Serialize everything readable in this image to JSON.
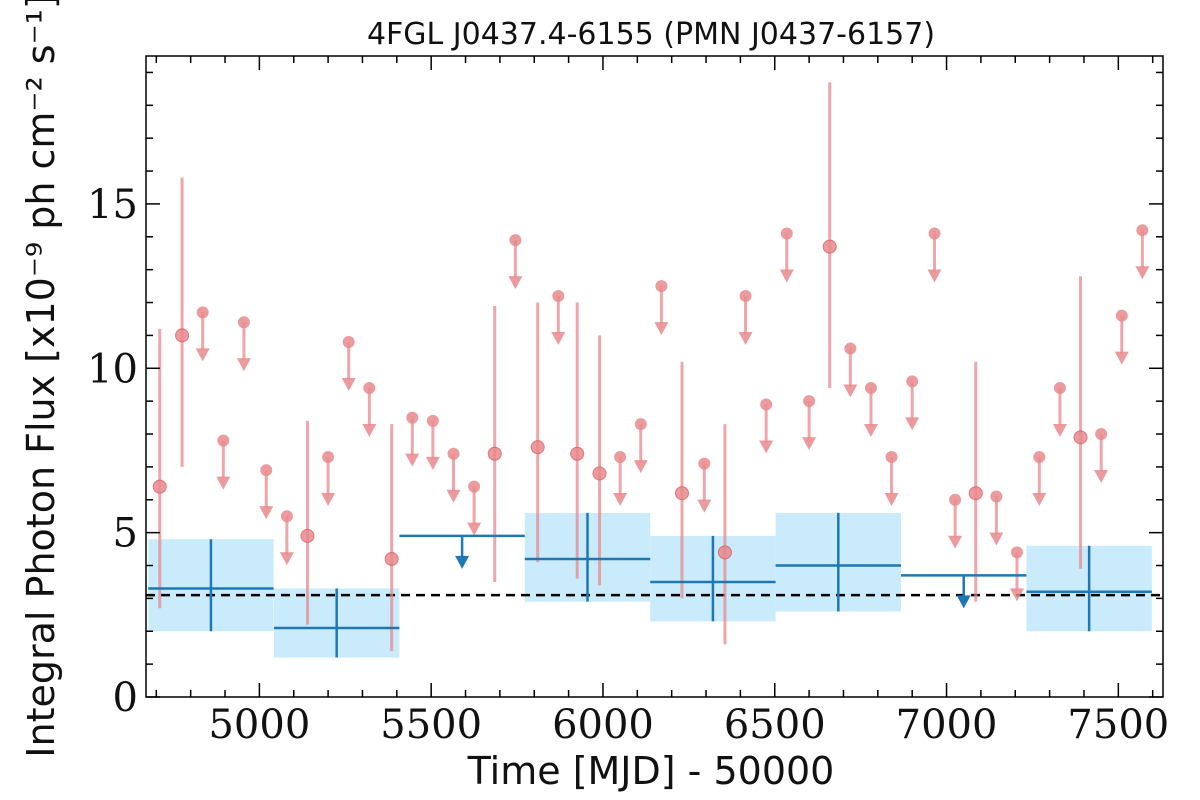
{
  "chart_data": {
    "type": "scatter",
    "title": "4FGL J0437.4-6155 (PMN J0437-6157)",
    "xlabel": "Time [MJD] - 50000",
    "ylabel": "Integral Photon Flux [x10⁻⁹ ph cm⁻² s⁻¹]",
    "xlim": [
      4670,
      7630
    ],
    "ylim": [
      0,
      19.5
    ],
    "xticks": [
      5000,
      5500,
      6000,
      6500,
      7000,
      7500
    ],
    "yticks": [
      0,
      5,
      10,
      15
    ],
    "xtick_labels": [
      "5000",
      "5500",
      "6000",
      "6500",
      "7000",
      "7500"
    ],
    "ytick_labels": [
      "0",
      "5",
      "10",
      "15"
    ],
    "reference_level": 3.1,
    "grid": false,
    "colors": {
      "fine_bins": "#e8898d",
      "coarse_bins": "#1f77b4",
      "coarse_band": "#c9ebfb",
      "reference_line": "#000000"
    },
    "series": [
      {
        "bin_width_days": 365,
        "detections": [
          {
            "x": 4859,
            "y": 3.3,
            "ylo": 2.0,
            "yhi": 4.8
          },
          {
            "x": 5225,
            "y": 2.1,
            "ylo": 1.2,
            "yhi": 3.3
          },
          {
            "x": 5955,
            "y": 4.2,
            "ylo": 2.9,
            "yhi": 5.6
          },
          {
            "x": 6320,
            "y": 3.5,
            "ylo": 2.3,
            "yhi": 4.9
          },
          {
            "x": 6685,
            "y": 4.0,
            "ylo": 2.6,
            "yhi": 5.6
          },
          {
            "x": 7415,
            "y": 3.2,
            "ylo": 2.0,
            "yhi": 4.6
          }
        ],
        "upper_limits": [
          {
            "x": 5590,
            "y": 4.9
          },
          {
            "x": 7050,
            "y": 3.7
          }
        ]
      },
      {
        "bin_width_days": 60,
        "detections": [
          {
            "x": 4710,
            "y": 6.4,
            "ylo": 2.7,
            "yhi": 11.2
          },
          {
            "x": 4775,
            "y": 11.0,
            "ylo": 7.0,
            "yhi": 15.8
          },
          {
            "x": 5140,
            "y": 4.9,
            "ylo": 2.2,
            "yhi": 8.4
          },
          {
            "x": 5385,
            "y": 4.2,
            "ylo": 1.4,
            "yhi": 8.3
          },
          {
            "x": 5685,
            "y": 7.4,
            "ylo": 3.5,
            "yhi": 11.9
          },
          {
            "x": 5810,
            "y": 7.6,
            "ylo": 4.1,
            "yhi": 12.0
          },
          {
            "x": 5925,
            "y": 7.4,
            "ylo": 3.6,
            "yhi": 12.0
          },
          {
            "x": 5990,
            "y": 6.8,
            "ylo": 3.4,
            "yhi": 11.0
          },
          {
            "x": 6230,
            "y": 6.2,
            "ylo": 3.0,
            "yhi": 10.2
          },
          {
            "x": 6355,
            "y": 4.4,
            "ylo": 1.6,
            "yhi": 8.3
          },
          {
            "x": 6660,
            "y": 13.7,
            "ylo": 9.4,
            "yhi": 18.7
          },
          {
            "x": 7085,
            "y": 6.2,
            "ylo": 2.9,
            "yhi": 10.2
          },
          {
            "x": 7390,
            "y": 7.9,
            "ylo": 3.9,
            "yhi": 12.8
          }
        ],
        "upper_limits": [
          {
            "x": 4835,
            "y": 11.7
          },
          {
            "x": 4895,
            "y": 7.8
          },
          {
            "x": 4955,
            "y": 11.4
          },
          {
            "x": 5020,
            "y": 6.9
          },
          {
            "x": 5080,
            "y": 5.5
          },
          {
            "x": 5200,
            "y": 7.3
          },
          {
            "x": 5260,
            "y": 10.8
          },
          {
            "x": 5320,
            "y": 9.4
          },
          {
            "x": 5445,
            "y": 8.5
          },
          {
            "x": 5505,
            "y": 8.4
          },
          {
            "x": 5565,
            "y": 7.4
          },
          {
            "x": 5625,
            "y": 6.4
          },
          {
            "x": 5745,
            "y": 13.9
          },
          {
            "x": 5870,
            "y": 12.2
          },
          {
            "x": 6050,
            "y": 7.3
          },
          {
            "x": 6110,
            "y": 8.3
          },
          {
            "x": 6170,
            "y": 12.5
          },
          {
            "x": 6295,
            "y": 7.1
          },
          {
            "x": 6415,
            "y": 12.2
          },
          {
            "x": 6475,
            "y": 8.9
          },
          {
            "x": 6535,
            "y": 14.1
          },
          {
            "x": 6600,
            "y": 9.0
          },
          {
            "x": 6720,
            "y": 10.6
          },
          {
            "x": 6780,
            "y": 9.4
          },
          {
            "x": 6840,
            "y": 7.3
          },
          {
            "x": 6900,
            "y": 9.6
          },
          {
            "x": 6965,
            "y": 14.1
          },
          {
            "x": 7025,
            "y": 6.0
          },
          {
            "x": 7145,
            "y": 6.1
          },
          {
            "x": 7205,
            "y": 4.4
          },
          {
            "x": 7270,
            "y": 7.3
          },
          {
            "x": 7330,
            "y": 9.4
          },
          {
            "x": 7450,
            "y": 8.0
          },
          {
            "x": 7510,
            "y": 11.6
          },
          {
            "x": 7570,
            "y": 14.2
          }
        ]
      }
    ]
  }
}
